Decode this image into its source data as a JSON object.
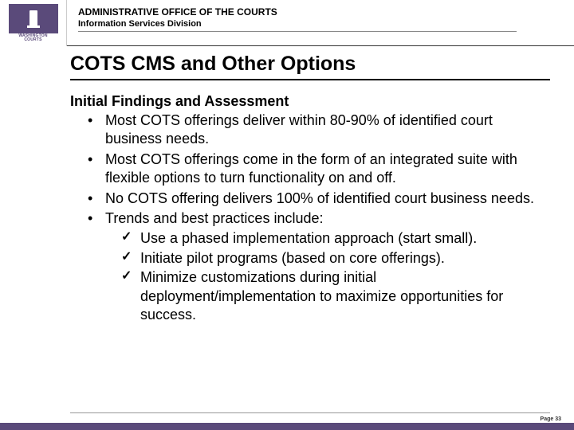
{
  "header": {
    "org_line1": "ADMINISTRATIVE OFFICE OF THE COURTS",
    "org_line2": "Information Services Division",
    "logo_top": "WASHINGTON",
    "logo_bottom": "COURTS"
  },
  "slide": {
    "title": "COTS CMS and Other Options",
    "section_heading": "Initial Findings and Assessment",
    "bullets": [
      "Most COTS offerings deliver within 80-90% of identified court business needs.",
      "Most COTS offerings come in the form of an integrated suite with flexible options to turn functionality on and off.",
      "No COTS offering delivers 100% of identified court business needs.",
      "Trends and best practices include:"
    ],
    "checks": [
      "Use a phased implementation approach (start small).",
      "Initiate pilot programs (based on core offerings).",
      "Minimize customizations during initial deployment/implementation to maximize opportunities for success."
    ]
  },
  "footer": {
    "page": "Page 33"
  },
  "colors": {
    "brand": "#5a4a7a",
    "text": "#000000",
    "bg": "#ffffff"
  }
}
